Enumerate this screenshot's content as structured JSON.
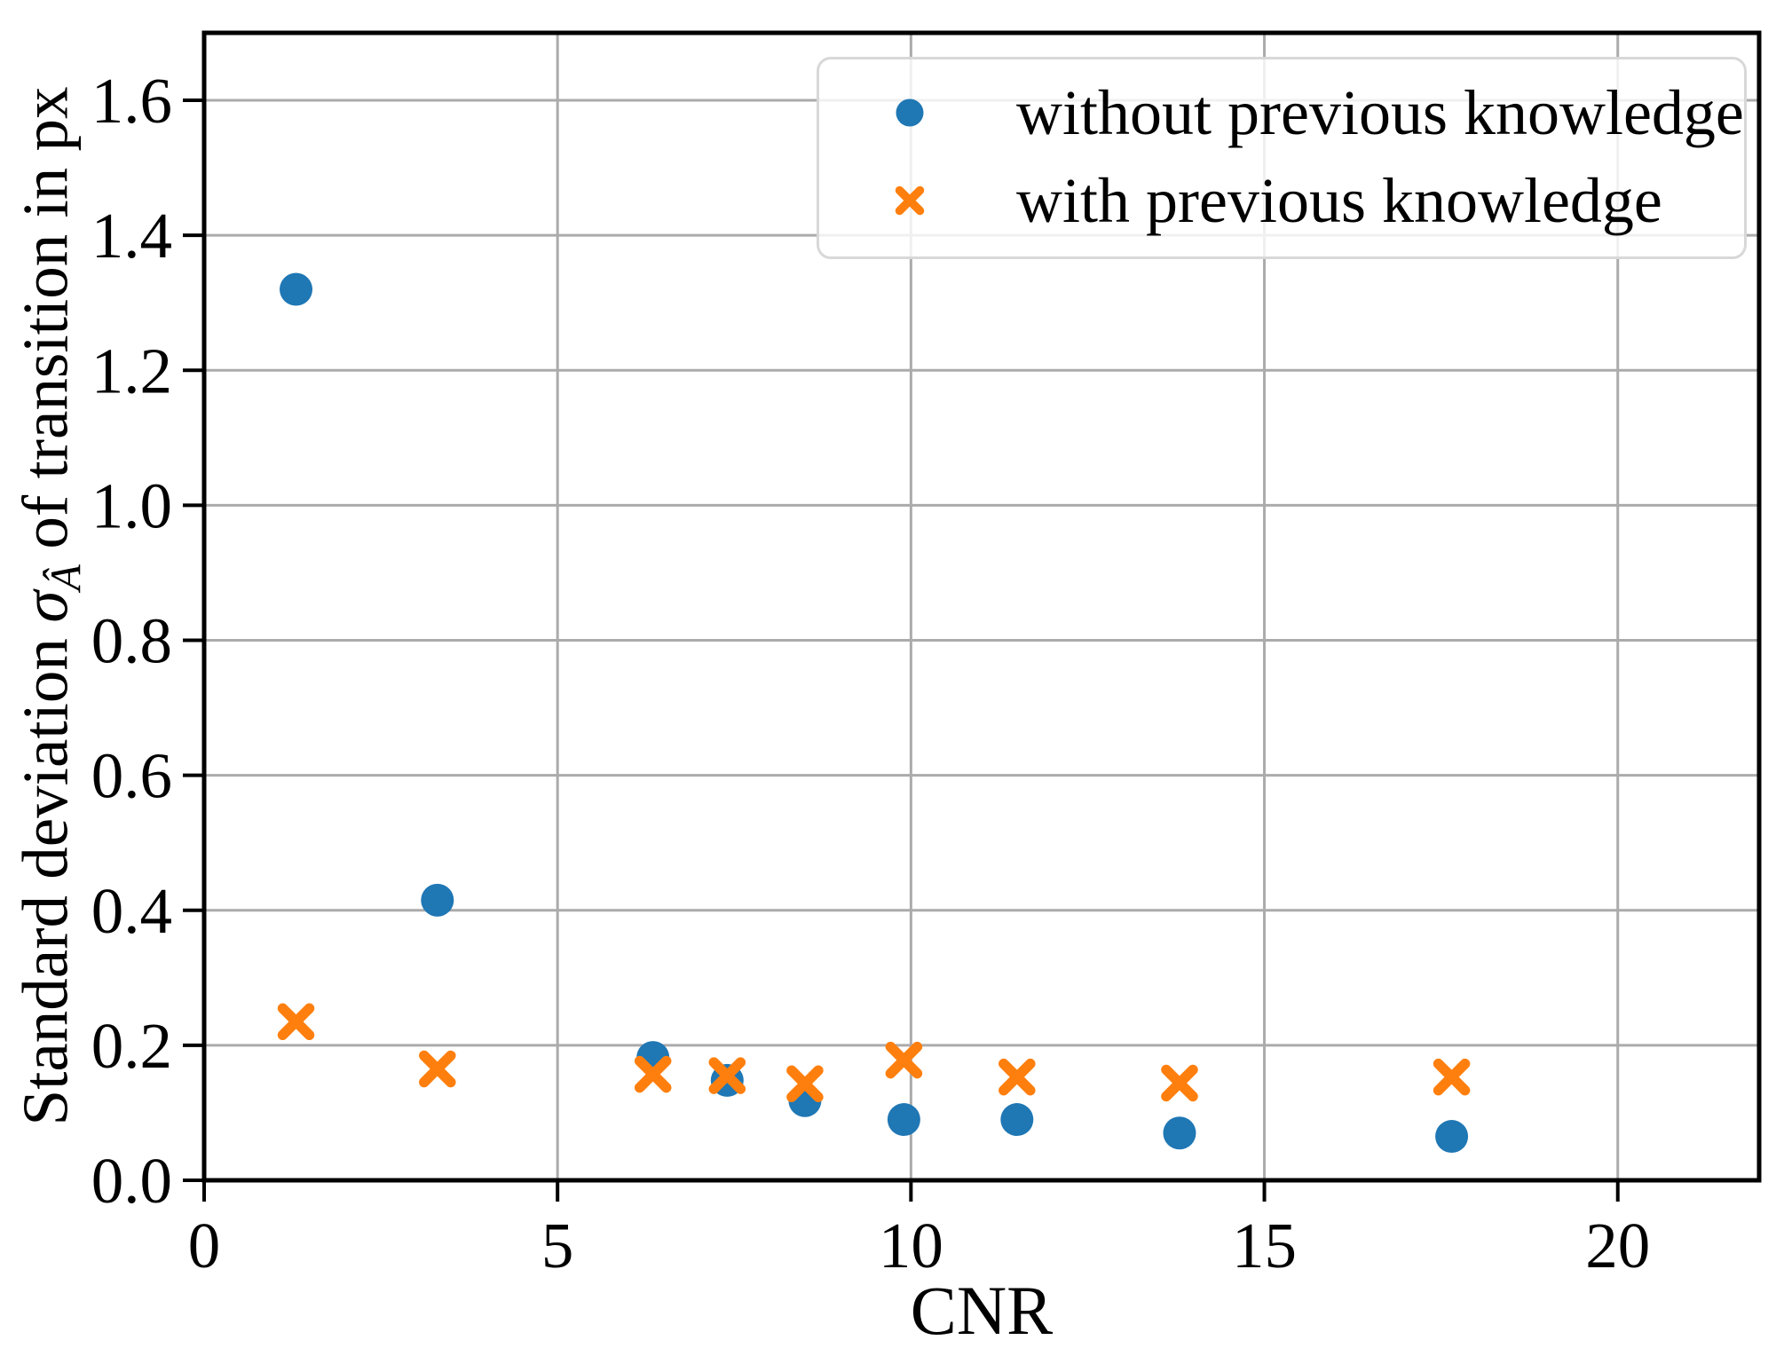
{
  "figure": {
    "background": "#ffffff"
  },
  "labels": {
    "ylabel_prefix": "Standard deviation",
    "ylabel_symbol": "σ",
    "ylabel_subscript": "Â",
    "ylabel_suffix": "of transition in px"
  },
  "chart_data": {
    "type": "scatter",
    "title": "",
    "xlabel": "CNR",
    "ylabel": "Standard deviation σ_Â of transition in px",
    "xlim": [
      0,
      22
    ],
    "ylim": [
      0,
      1.7
    ],
    "xticks": [
      0,
      5,
      10,
      15,
      20
    ],
    "xtick_labels": [
      "0",
      "5",
      "10",
      "15",
      "20"
    ],
    "yticks": [
      0,
      0.2,
      0.4,
      0.6,
      0.8,
      1.0,
      1.2,
      1.4,
      1.6
    ],
    "ytick_labels": [
      "0.0",
      "0.2",
      "0.4",
      "0.6",
      "0.8",
      "1.0",
      "1.2",
      "1.4",
      "1.6"
    ],
    "grid": true,
    "grid_color": "#ababab",
    "frame_color": "#000000",
    "text_color": "#000000",
    "legend_position": "upper right",
    "series": [
      {
        "name": "without previous knowledge",
        "marker": "circle",
        "color": "#1f77b4",
        "points": [
          [
            1.3,
            1.32
          ],
          [
            3.3,
            0.415
          ],
          [
            6.35,
            0.182
          ],
          [
            7.4,
            0.148
          ],
          [
            8.5,
            0.118
          ],
          [
            9.9,
            0.09
          ],
          [
            11.5,
            0.09
          ],
          [
            13.8,
            0.07
          ],
          [
            17.65,
            0.065
          ]
        ]
      },
      {
        "name": "with previous knowledge",
        "marker": "x",
        "color": "#ff7f0e",
        "points": [
          [
            1.3,
            0.235
          ],
          [
            3.3,
            0.165
          ],
          [
            6.35,
            0.157
          ],
          [
            7.4,
            0.155
          ],
          [
            8.5,
            0.143
          ],
          [
            9.9,
            0.178
          ],
          [
            11.5,
            0.153
          ],
          [
            13.8,
            0.144
          ],
          [
            17.65,
            0.153
          ]
        ]
      }
    ]
  }
}
